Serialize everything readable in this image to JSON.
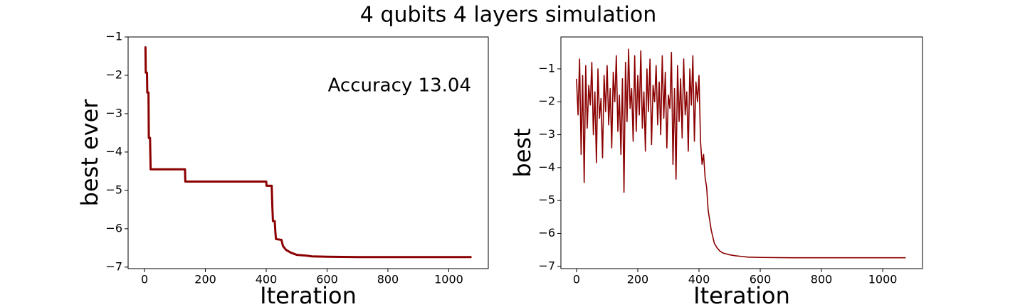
{
  "title": "4 qubits 4 layers simulation",
  "chart_data": [
    {
      "type": "line",
      "xlabel": "Iteration",
      "ylabel": "best ever",
      "annotation": "Accuracy 13.04",
      "xlim": [
        -54,
        1130
      ],
      "ylim": [
        -7.04,
        -1
      ],
      "xticks": [
        0,
        200,
        400,
        600,
        800,
        1000
      ],
      "yticks": [
        {
          "value": -1,
          "label": "−1"
        },
        {
          "value": -2,
          "label": "−2"
        },
        {
          "value": -3,
          "label": "−3"
        },
        {
          "value": -4,
          "label": "−4"
        },
        {
          "value": -5,
          "label": "−5"
        },
        {
          "value": -6,
          "label": "−6"
        },
        {
          "value": -7,
          "label": "−7"
        }
      ],
      "line_width": 3,
      "x": [
        0,
        3,
        4,
        8,
        9,
        13,
        14,
        18,
        20,
        133,
        134,
        400,
        401,
        418,
        420,
        422,
        428,
        430,
        432,
        450,
        455,
        465,
        480,
        500,
        530,
        550,
        600,
        700,
        1075
      ],
      "series": [
        {
          "color": "#8b0000",
          "values": [
            -1.27,
            -1.27,
            -1.93,
            -1.93,
            -2.45,
            -2.45,
            -3.63,
            -3.63,
            -4.45,
            -4.45,
            -4.77,
            -4.77,
            -4.88,
            -4.88,
            -5.4,
            -5.8,
            -5.8,
            -6.08,
            -6.27,
            -6.29,
            -6.45,
            -6.55,
            -6.62,
            -6.68,
            -6.7,
            -6.72,
            -6.73,
            -6.74,
            -6.74
          ]
        }
      ]
    },
    {
      "type": "line",
      "xlabel": "Iteration",
      "ylabel": "best",
      "xlim": [
        -51,
        1130
      ],
      "ylim": [
        -7.07,
        -0.03
      ],
      "xticks": [
        0,
        200,
        400,
        600,
        800,
        1000
      ],
      "yticks": [
        {
          "value": -1,
          "label": "−1"
        },
        {
          "value": -2,
          "label": "−2"
        },
        {
          "value": -3,
          "label": "−3"
        },
        {
          "value": -4,
          "label": "−4"
        },
        {
          "value": -5,
          "label": "−5"
        },
        {
          "value": -6,
          "label": "−6"
        },
        {
          "value": -7,
          "label": "−7"
        }
      ],
      "line_width": 1.6,
      "x": [
        0,
        5,
        10,
        15,
        20,
        25,
        30,
        35,
        40,
        45,
        50,
        55,
        60,
        65,
        70,
        75,
        80,
        85,
        90,
        95,
        100,
        105,
        110,
        115,
        120,
        125,
        130,
        135,
        140,
        145,
        150,
        155,
        160,
        165,
        170,
        175,
        180,
        185,
        190,
        195,
        200,
        205,
        210,
        215,
        220,
        225,
        230,
        235,
        240,
        245,
        250,
        255,
        260,
        265,
        270,
        275,
        280,
        285,
        290,
        295,
        300,
        305,
        310,
        315,
        320,
        325,
        330,
        335,
        340,
        345,
        350,
        355,
        360,
        365,
        370,
        375,
        380,
        385,
        390,
        395,
        400,
        405,
        410,
        415,
        420,
        425,
        430,
        435,
        440,
        445,
        450,
        460,
        470,
        480,
        500,
        520,
        540,
        560,
        600,
        700,
        800,
        1075
      ],
      "series": [
        {
          "color": "#8b0000",
          "values": [
            -1.3,
            -2.4,
            -0.7,
            -3.6,
            -1.2,
            -4.45,
            -0.9,
            -2.8,
            -1.5,
            -2.1,
            -0.8,
            -3.0,
            -1.7,
            -3.85,
            -1.0,
            -2.5,
            -1.9,
            -3.7,
            -1.2,
            -2.3,
            -0.9,
            -2.7,
            -1.6,
            -3.4,
            -1.1,
            -2.0,
            -0.6,
            -2.9,
            -1.8,
            -3.6,
            -1.3,
            -4.75,
            -0.8,
            -2.6,
            -0.4,
            -2.2,
            -1.6,
            -3.2,
            -0.6,
            -2.9,
            -1.2,
            -2.4,
            -0.45,
            -2.8,
            -1.7,
            -3.5,
            -1.0,
            -2.3,
            -0.7,
            -3.3,
            -1.5,
            -2.0,
            -0.9,
            -2.7,
            -1.4,
            -3.0,
            -0.6,
            -2.5,
            -1.1,
            -3.4,
            -1.8,
            -2.2,
            -0.5,
            -3.9,
            -1.6,
            -4.35,
            -0.9,
            -2.6,
            -1.3,
            -3.1,
            -0.7,
            -2.4,
            -1.7,
            -3.5,
            -1.0,
            -2.1,
            -0.6,
            -3.2,
            -1.4,
            -2.0,
            -1.2,
            -3.2,
            -3.9,
            -3.6,
            -4.3,
            -4.6,
            -5.3,
            -5.6,
            -5.9,
            -6.1,
            -6.3,
            -6.45,
            -6.55,
            -6.6,
            -6.65,
            -6.68,
            -6.7,
            -6.72,
            -6.73,
            -6.74,
            -6.74,
            -6.74
          ]
        }
      ]
    }
  ]
}
